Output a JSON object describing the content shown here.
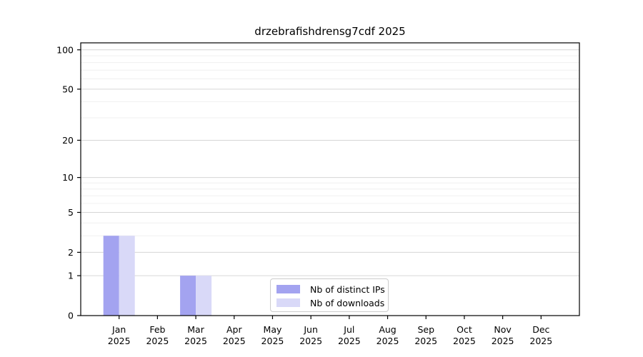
{
  "title": "drzebrafishdrensg7cdf 2025",
  "chart_data": {
    "type": "bar",
    "title": "drzebrafishdrensg7cdf 2025",
    "categories": [
      "Jan",
      "Feb",
      "Mar",
      "Apr",
      "May",
      "Jun",
      "Jul",
      "Aug",
      "Sep",
      "Oct",
      "Nov",
      "Dec"
    ],
    "year_label": "2025",
    "series": [
      {
        "name": "Nb of distinct IPs",
        "color": "#a3a3f0",
        "values": [
          3,
          0,
          1,
          0,
          0,
          0,
          0,
          0,
          0,
          0,
          0,
          0
        ]
      },
      {
        "name": "Nb of downloads",
        "color": "#d9d9f8",
        "values": [
          3,
          0,
          1,
          0,
          0,
          0,
          0,
          0,
          0,
          0,
          0,
          0
        ]
      }
    ],
    "yscale": "log1p",
    "yticks": [
      0,
      1,
      2,
      5,
      10,
      20,
      50,
      100
    ],
    "minor_gridlines": [
      3,
      4,
      6,
      7,
      8,
      9,
      30,
      40,
      60,
      70,
      80,
      90
    ],
    "ylim": [
      0,
      113
    ],
    "xlabel": "",
    "ylabel": "",
    "grid": "horizontal",
    "legend_position": "lower-center"
  },
  "colors": {
    "background": "#ffffff",
    "axis": "#000000",
    "tick_label": "#000000",
    "major_grid": "#d6d6d6",
    "minor_grid": "#f0f0f0",
    "legend_border": "#cccccc",
    "bar_distinct_ips": "#a3a3f0",
    "bar_downloads": "#d9d9f8"
  }
}
